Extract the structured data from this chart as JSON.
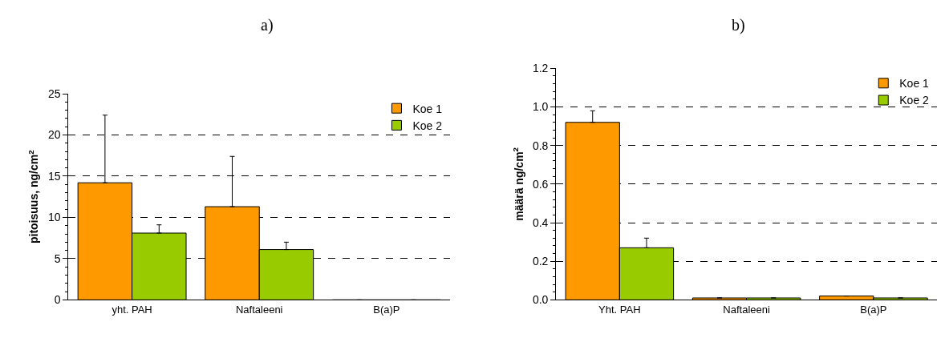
{
  "chart_data": [
    {
      "type": "bar",
      "title": "a)",
      "ylabel": "pitoisuus, ng/cm$^{2}$",
      "categories": [
        "yht. PAH",
        "Naftaleeni",
        "B(a)P"
      ],
      "series": [
        {
          "name": "Koe 1",
          "color": "#ff9900",
          "values": [
            14.2,
            11.3,
            0
          ],
          "errors": [
            [
              14.2,
              22.4
            ],
            [
              11.3,
              17.4
            ],
            null
          ]
        },
        {
          "name": "Koe 2",
          "color": "#99cc00",
          "values": [
            8.1,
            6.1,
            0
          ],
          "errors": [
            [
              8.1,
              9.1
            ],
            [
              6.1,
              7.0
            ],
            null
          ]
        }
      ],
      "ylim": [
        0,
        25
      ],
      "yticks": [
        0,
        5,
        10,
        15,
        20,
        25
      ],
      "grid": "y",
      "legend": "top right"
    },
    {
      "type": "bar",
      "title": "b)",
      "ylabel": "määrä ng/cm$^{2}$",
      "categories": [
        "Yht. PAH",
        "Naftaleeni",
        "B(a)P"
      ],
      "series": [
        {
          "name": "Koe 1",
          "color": "#ff9900",
          "values": [
            0.92,
            0.01,
            0.02
          ],
          "errors": [
            [
              0.92,
              0.98
            ],
            null,
            null
          ]
        },
        {
          "name": "Koe 2",
          "color": "#99cc00",
          "values": [
            0.27,
            0.01,
            0.01
          ],
          "errors": [
            [
              0.27,
              0.32
            ],
            null,
            null
          ]
        }
      ],
      "ylim": [
        0,
        1.2
      ],
      "yticks": [
        {
          "value": 0,
          "label": "0.0"
        },
        0.2,
        0.4,
        0.6,
        0.8,
        {
          "value": 1,
          "label": "1.0"
        },
        1.2
      ],
      "grid": "y",
      "legend": "top right"
    }
  ]
}
